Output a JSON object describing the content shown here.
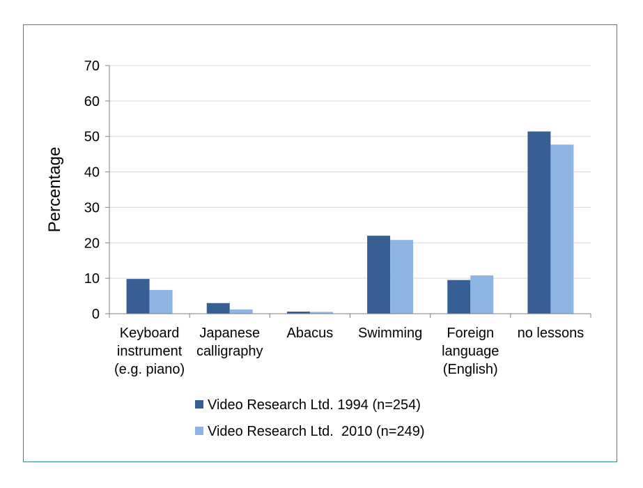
{
  "chart_data": {
    "type": "bar",
    "ylabel": "Percentage",
    "xlabel": "",
    "ylim": [
      0,
      70
    ],
    "yticks": [
      0,
      10,
      20,
      30,
      40,
      50,
      60,
      70
    ],
    "grid": true,
    "legend_position": "bottom",
    "categories": [
      [
        "Keyboard",
        "instrument",
        "(e.g. piano)"
      ],
      [
        "Japanese",
        "calligraphy"
      ],
      [
        "Abacus"
      ],
      [
        "Swimming"
      ],
      [
        "Foreign",
        "language",
        "(English)"
      ],
      [
        "no lessons"
      ]
    ],
    "series": [
      {
        "name": "Video Research Ltd. 1994 (n=254)",
        "color": "#375f93",
        "values": [
          9.8,
          3.0,
          0.6,
          22.0,
          9.5,
          51.4
        ]
      },
      {
        "name": "Video Research Ltd.  2010 (n=249)",
        "color": "#8eb4e3",
        "values": [
          6.7,
          1.2,
          0.5,
          20.8,
          10.8,
          47.7
        ]
      }
    ]
  }
}
